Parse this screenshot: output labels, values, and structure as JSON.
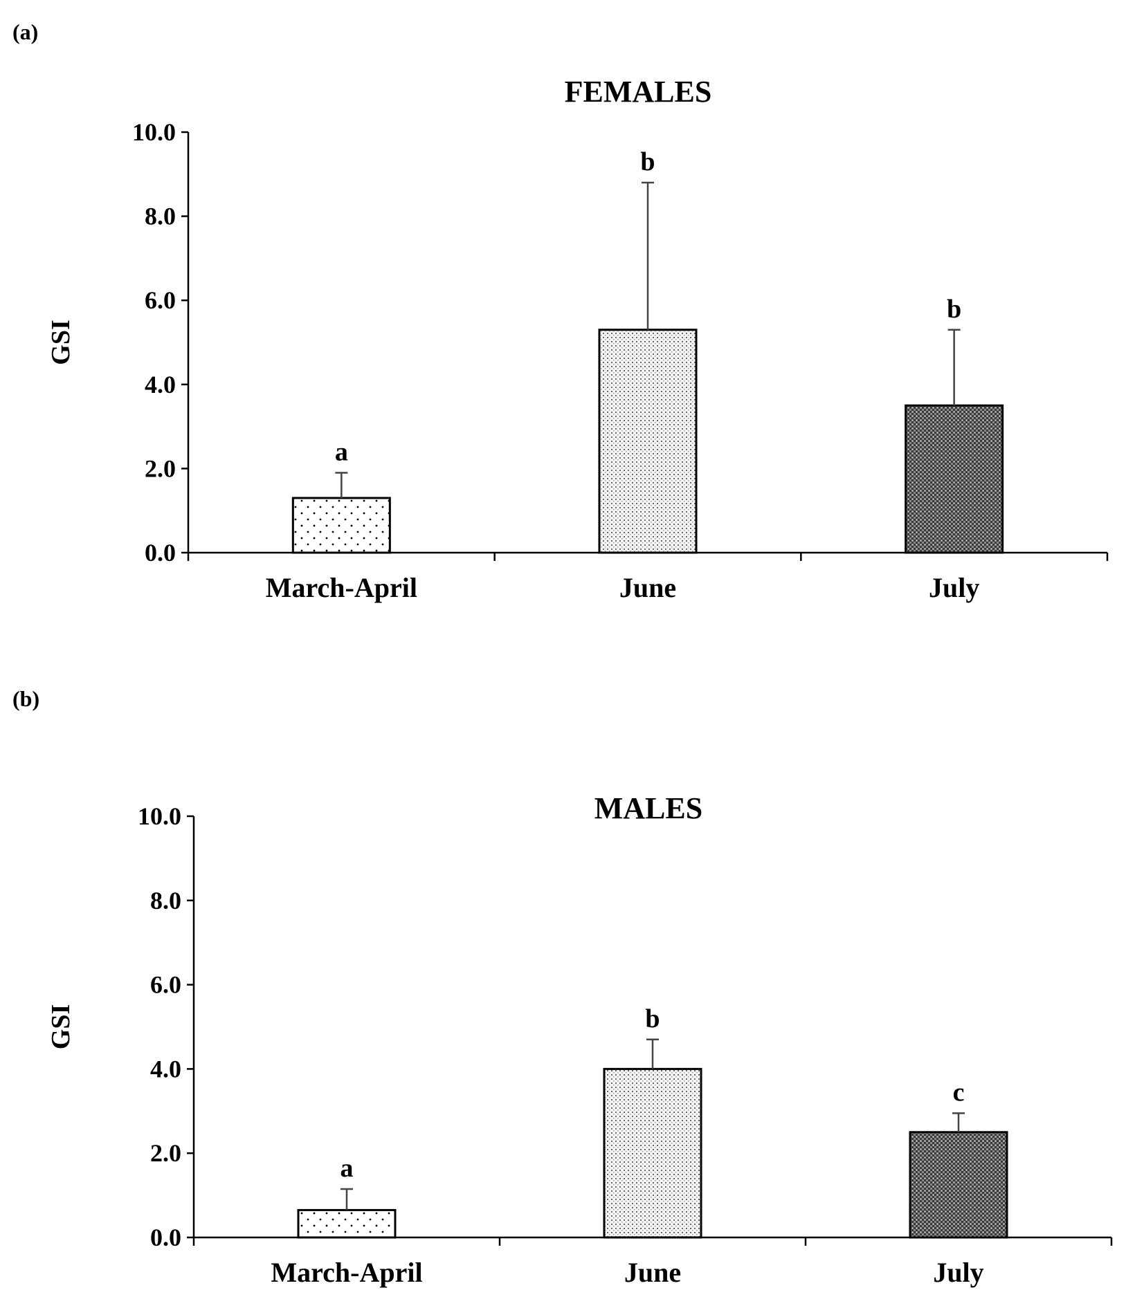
{
  "panels": [
    {
      "letter": "(a)",
      "chart_data": {
        "type": "bar",
        "title": "FEMALES",
        "xlabel": "",
        "ylabel": "GSI",
        "ylim": [
          0,
          10
        ],
        "yticks": [
          0,
          2,
          4,
          6,
          8,
          10
        ],
        "ytick_labels": [
          "0.0",
          "2.0",
          "4.0",
          "6.0",
          "8.0",
          "10.0"
        ],
        "categories": [
          "March-April",
          "June",
          "July"
        ],
        "values": [
          1.3,
          5.3,
          3.5
        ],
        "error_upper": [
          0.6,
          3.5,
          1.8
        ],
        "significance_labels": [
          "a",
          "b",
          "b"
        ],
        "patterns": [
          "sparse-dots",
          "fine-dots",
          "dense-checker"
        ]
      }
    },
    {
      "letter": "(b)",
      "chart_data": {
        "type": "bar",
        "title": "MALES",
        "xlabel": "",
        "ylabel": "GSI",
        "ylim": [
          0,
          10
        ],
        "yticks": [
          0,
          2,
          4,
          6,
          8,
          10
        ],
        "ytick_labels": [
          "0.0",
          "2.0",
          "4.0",
          "6.0",
          "8.0",
          "10.0"
        ],
        "categories": [
          "March-April",
          "June",
          "July"
        ],
        "values": [
          0.65,
          4.0,
          2.5
        ],
        "error_upper": [
          0.5,
          0.7,
          0.45
        ],
        "significance_labels": [
          "a",
          "b",
          "c"
        ],
        "patterns": [
          "sparse-dots",
          "fine-dots",
          "dense-checker"
        ]
      }
    }
  ]
}
